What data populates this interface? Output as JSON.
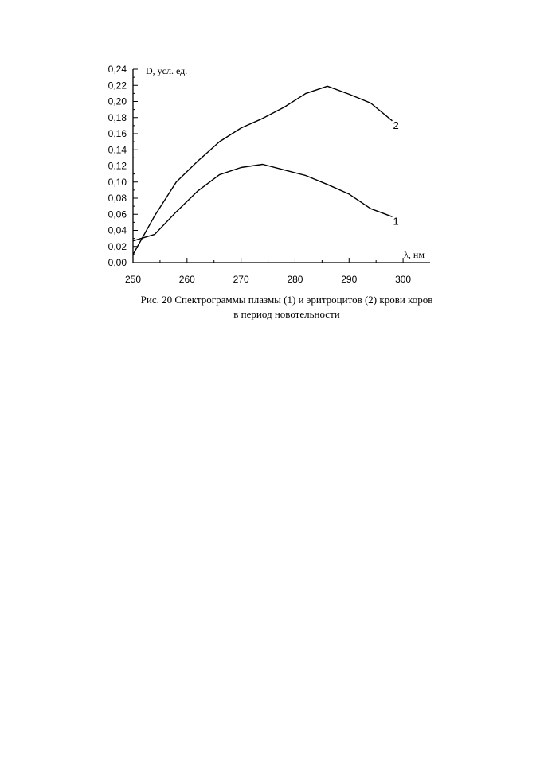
{
  "chart_data": {
    "type": "line",
    "ylabel": "D, усл. ед.",
    "xlabel": "λ, нм",
    "xlim": [
      250,
      305
    ],
    "ylim": [
      0,
      0.24
    ],
    "x_ticks": [
      "250",
      "260",
      "270",
      "280",
      "290",
      "300"
    ],
    "y_ticks": [
      "0,00",
      "0,02",
      "0,04",
      "0,06",
      "0,08",
      "0,10",
      "0,12",
      "0,14",
      "0,16",
      "0,18",
      "0,20",
      "0,22",
      "0,24"
    ],
    "grid": false,
    "series": [
      {
        "name": "1",
        "x": [
          250,
          254,
          258,
          262,
          266,
          270,
          274,
          278,
          282,
          286,
          290,
          294,
          298
        ],
        "y": [
          0.027,
          0.035,
          0.063,
          0.089,
          0.109,
          0.118,
          0.122,
          0.115,
          0.108,
          0.097,
          0.085,
          0.067,
          0.057
        ]
      },
      {
        "name": "2",
        "x": [
          250,
          254,
          258,
          262,
          266,
          270,
          274,
          278,
          282,
          286,
          290,
          294,
          298
        ],
        "y": [
          0.01,
          0.058,
          0.1,
          0.126,
          0.15,
          0.167,
          0.179,
          0.193,
          0.21,
          0.219,
          0.209,
          0.198,
          0.176
        ]
      }
    ]
  },
  "caption": {
    "line1": "Рис. 20 Спектрограммы плазмы (1) и эритроцитов (2) крови коров",
    "line2": "в период  новотельности"
  }
}
